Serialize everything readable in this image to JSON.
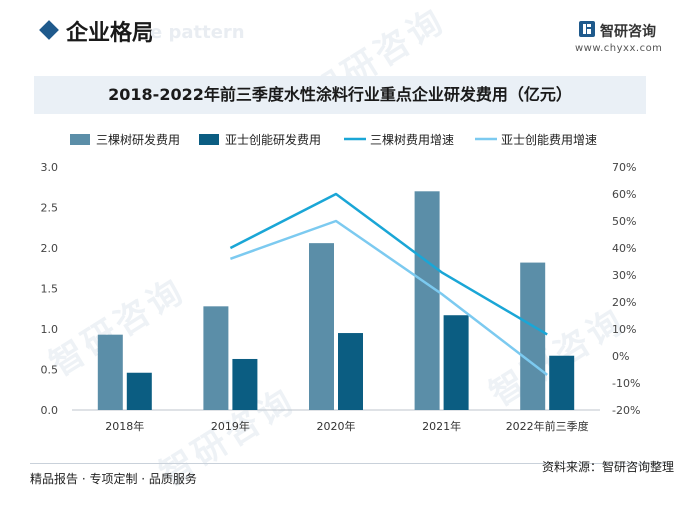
{
  "header": {
    "section_title": "企业格局",
    "section_subtitle_en": "e pattern",
    "brand_name": "智研咨询",
    "brand_url": "www.chyxx.com",
    "logo_icon": "chyxx-logo-icon"
  },
  "footer": {
    "left_text": "精品报告 · 专项定制 · 品质服务",
    "source_text": "资料来源：智研咨询整理"
  },
  "watermark_text": "智研咨询",
  "colors": {
    "bar_sankeshu": "#5b8ea8",
    "bar_yashi": "#0b5d82",
    "line_sankeshu": "#1aa6d6",
    "line_yashi": "#7ccaf0",
    "title_bg": "#eaf0f6"
  },
  "chart_data": {
    "type": "bar",
    "title": "2018-2022年前三季度水性涂料行业重点企业研发费用（亿元）",
    "categories": [
      "2018年",
      "2019年",
      "2020年",
      "2021年",
      "2022年前三季度"
    ],
    "series": [
      {
        "name": "三棵树研发费用",
        "kind": "bar",
        "axis": "left",
        "values": [
          0.93,
          1.28,
          2.06,
          2.7,
          1.82
        ]
      },
      {
        "name": "亚士创能研发费用",
        "kind": "bar",
        "axis": "left",
        "values": [
          0.46,
          0.63,
          0.95,
          1.17,
          0.67
        ]
      },
      {
        "name": "三棵树费用增速",
        "kind": "line",
        "axis": "right",
        "values": [
          null,
          40,
          60,
          31,
          8
        ]
      },
      {
        "name": "亚士创能费用增速",
        "kind": "line",
        "axis": "right",
        "values": [
          null,
          36,
          50,
          23,
          -7
        ]
      }
    ],
    "y_left": {
      "min": 0,
      "max": 3.0,
      "ticks": [
        "0.0",
        "0.5",
        "1.0",
        "1.5",
        "2.0",
        "2.5",
        "3.0"
      ]
    },
    "y_right": {
      "min": -20,
      "max": 70,
      "ticks": [
        "-20%",
        "-10%",
        "0%",
        "10%",
        "20%",
        "30%",
        "40%",
        "50%",
        "60%",
        "70%"
      ]
    },
    "legend_position": "top",
    "grid": false
  }
}
